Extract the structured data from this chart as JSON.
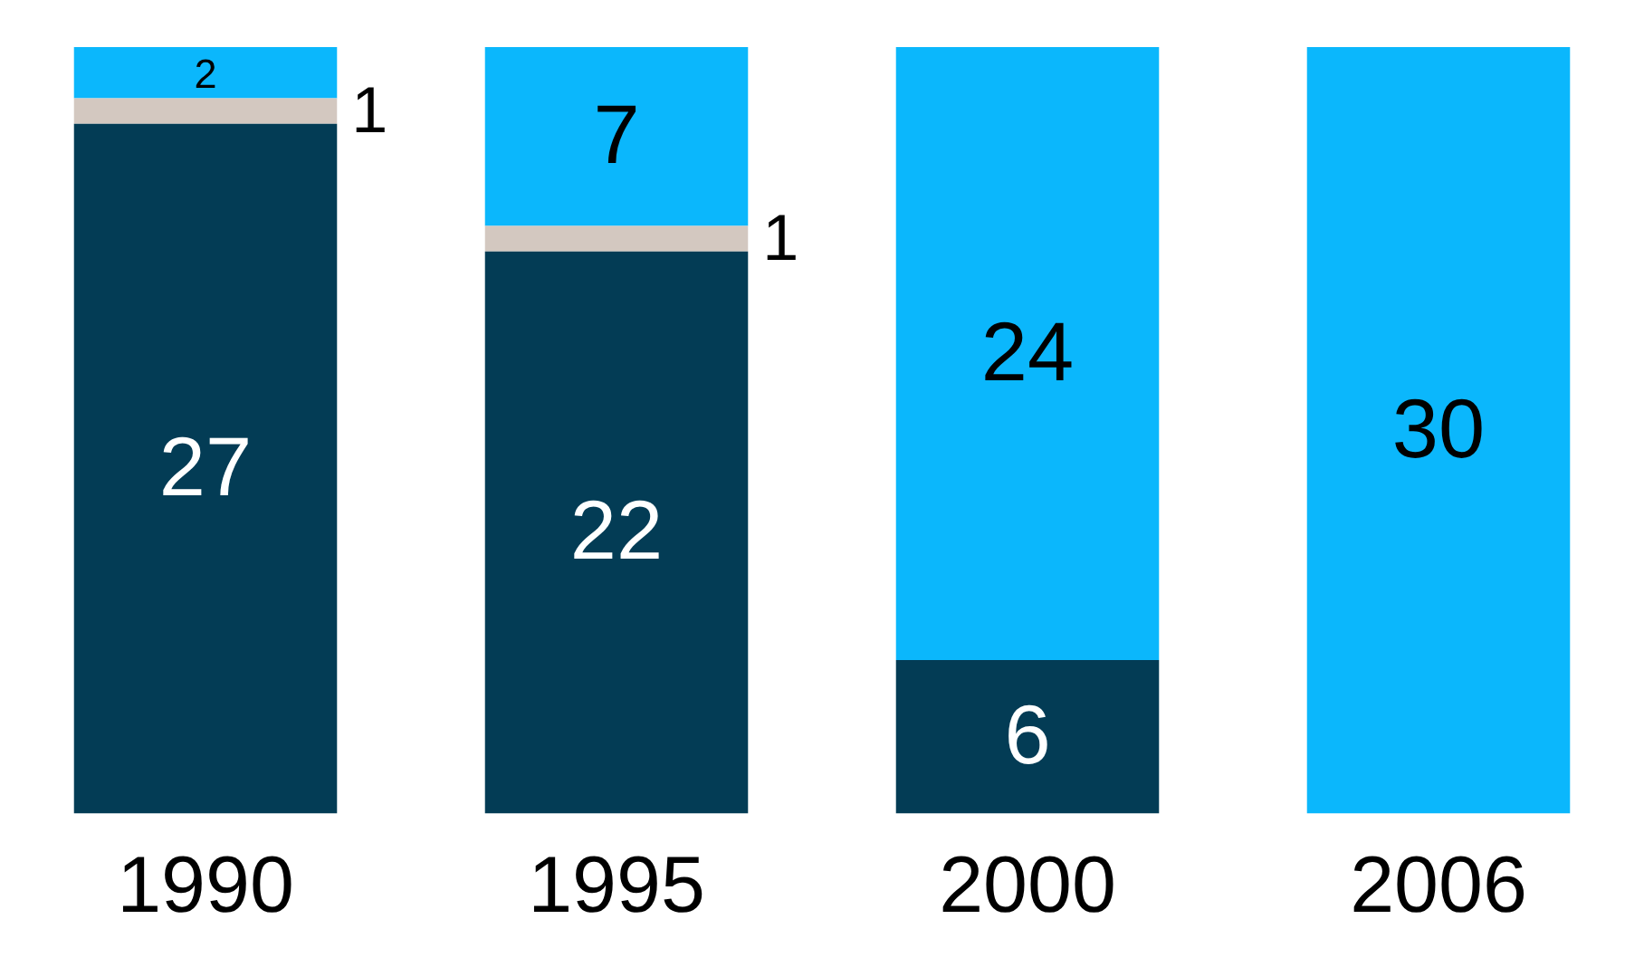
{
  "chart_data": {
    "type": "bar",
    "stacked": true,
    "categories": [
      "1990",
      "1995",
      "2000",
      "2006"
    ],
    "series": [
      {
        "color": "#033c55",
        "values": [
          27,
          22,
          6,
          null
        ]
      },
      {
        "color": "#d3c8c0",
        "values": [
          1,
          1,
          null,
          null
        ]
      },
      {
        "color": "#0bb7fc",
        "values": [
          2,
          7,
          24,
          30
        ]
      }
    ],
    "ylim": [
      0,
      30
    ],
    "data_labels": true,
    "legend": false,
    "grid": false,
    "tick_labels": "x"
  }
}
